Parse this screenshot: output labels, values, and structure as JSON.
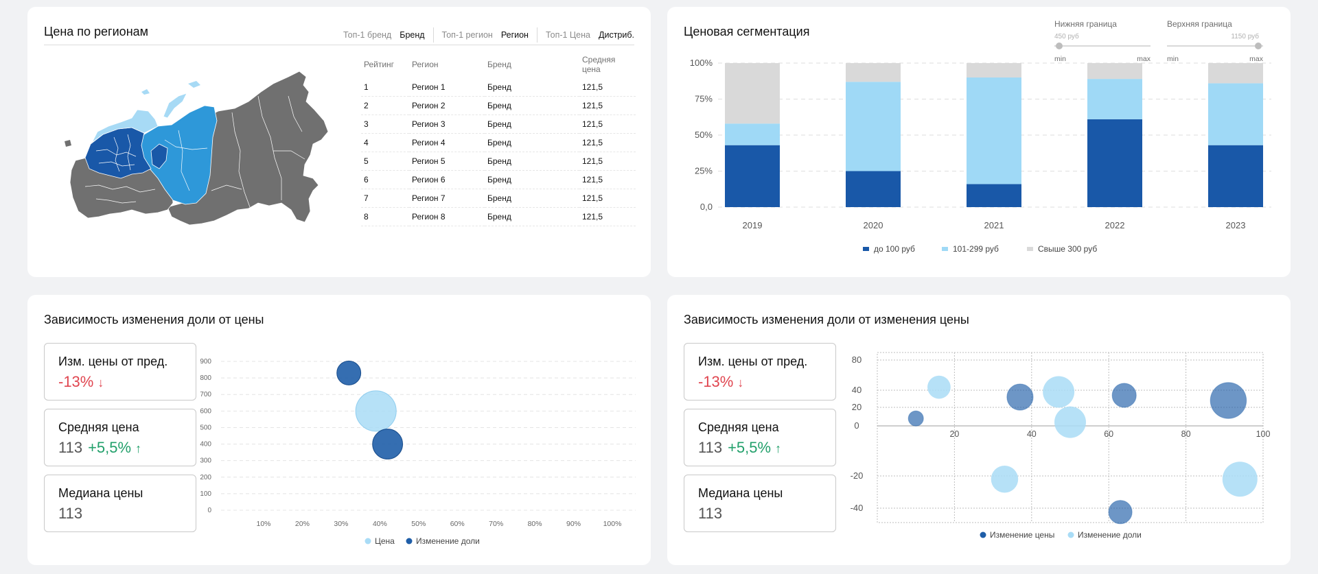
{
  "cards": {
    "map": {
      "title": "Цена по регионам",
      "filters": [
        {
          "label": "Топ-1 бренд",
          "value": "Бренд"
        },
        {
          "label": "Топ-1 регион",
          "value": "Регион"
        },
        {
          "label": "Топ-1 Цена",
          "value": "Дистриб."
        }
      ],
      "table": {
        "headers": [
          "Рейтинг",
          "Регион",
          "Бренд",
          "Средняя цена"
        ],
        "rows": [
          [
            "1",
            "Регион 1",
            "Бренд",
            "121,5"
          ],
          [
            "2",
            "Регион 2",
            "Бренд",
            "121,5"
          ],
          [
            "3",
            "Регион 3",
            "Бренд",
            "121,5"
          ],
          [
            "4",
            "Регион 4",
            "Бренд",
            "121,5"
          ],
          [
            "5",
            "Регион 5",
            "Бренд",
            "121,5"
          ],
          [
            "6",
            "Регион 6",
            "Бренд",
            "121,5"
          ],
          [
            "7",
            "Регион 7",
            "Бренд",
            "121,5"
          ],
          [
            "8",
            "Регион 8",
            "Бренд",
            "121,5"
          ]
        ]
      },
      "map_colors": {
        "high": "#1958a8",
        "mid": "#2e98d9",
        "low": "#a7daf5",
        "none": "#707070"
      }
    },
    "seg": {
      "title": "Ценовая сегментация",
      "slider_lower": {
        "title": "Нижняя граница",
        "current": "450 руб",
        "min": "min",
        "max": "max",
        "position": 0.05
      },
      "slider_upper": {
        "title": "Верхняя граница",
        "current": "1150 руб",
        "min": "min",
        "max": "max",
        "position": 0.95
      }
    },
    "bub1": {
      "title": "Зависимость изменения доли от цены",
      "kpis": [
        {
          "label": "Изм. цены от пред.",
          "value": "-13%",
          "arrow": "↓",
          "tone": "neg"
        },
        {
          "label": "Средняя цена",
          "value": "113",
          "delta": "+5,5%",
          "arrow": "↑",
          "tone": "pos"
        },
        {
          "label": "Медиана цены",
          "value": "113"
        }
      ]
    },
    "bub2": {
      "title": "Зависимость изменения доли от изменения цены",
      "kpis": [
        {
          "label": "Изм. цены от пред.",
          "value": "-13%",
          "arrow": "↓",
          "tone": "neg"
        },
        {
          "label": "Средняя цена",
          "value": "113",
          "delta": "+5,5%",
          "arrow": "↑",
          "tone": "pos"
        },
        {
          "label": "Медиана цены",
          "value": "113"
        }
      ]
    }
  },
  "chart_data": [
    {
      "type": "bar",
      "stacked": true,
      "categories": [
        "2019",
        "2020",
        "2021",
        "2022",
        "2023"
      ],
      "series": [
        {
          "name": "до 100 руб",
          "color": "#1958a8",
          "values": [
            43,
            25,
            16,
            61,
            43
          ]
        },
        {
          "name": "101-299 руб",
          "color": "#9fd9f6",
          "values": [
            15,
            62,
            74,
            28,
            43
          ]
        },
        {
          "name": "Свыше 300 руб",
          "color": "#d9d9d9",
          "values": [
            42,
            13,
            10,
            11,
            14
          ]
        }
      ],
      "ylim": [
        0,
        100
      ],
      "yticks": [
        "0,0",
        "25%",
        "50%",
        "75%",
        "100%"
      ],
      "grid": true,
      "legend": "bottom"
    },
    {
      "type": "scatter",
      "bubble": true,
      "xticks": [
        "10%",
        "20%",
        "30%",
        "40%",
        "50%",
        "60%",
        "70%",
        "80%",
        "90%",
        "100%"
      ],
      "yticks": [
        "0",
        "100",
        "200",
        "300",
        "400",
        "500",
        "600",
        "700",
        "800",
        "900"
      ],
      "xlim": [
        0,
        100
      ],
      "ylim": [
        0,
        900
      ],
      "series": [
        {
          "name": "Цена",
          "color": "#a9dcf6",
          "points": [
            {
              "x": 39,
              "y": 600,
              "size": 100
            }
          ]
        },
        {
          "name": "Изменение доли",
          "color": "#1f5ea8",
          "points": [
            {
              "x": 32,
              "y": 830,
              "size": 35
            },
            {
              "x": 42,
              "y": 400,
              "size": 55
            }
          ]
        }
      ],
      "grid": true,
      "legend": "bottom"
    },
    {
      "type": "scatter",
      "bubble": true,
      "xticks": [
        "20",
        "40",
        "60",
        "80",
        "100"
      ],
      "yticks": [
        "80",
        "40",
        "20",
        "0",
        "-20",
        "-40"
      ],
      "xlim": [
        0,
        100
      ],
      "ylim": [
        -50,
        85
      ],
      "series": [
        {
          "name": "Изменение цены",
          "color": "#1f5ea8",
          "points": [
            {
              "x": 10,
              "y": 8,
              "size": 15
            },
            {
              "x": 37,
              "y": 32,
              "size": 45
            },
            {
              "x": 64,
              "y": 34,
              "size": 38
            },
            {
              "x": 91,
              "y": 28,
              "size": 85
            },
            {
              "x": 63,
              "y": -43,
              "size": 36
            }
          ]
        },
        {
          "name": "Изменение доли",
          "color": "#a9dcf6",
          "points": [
            {
              "x": 16,
              "y": 44,
              "size": 35
            },
            {
              "x": 47,
              "y": 38,
              "size": 65
            },
            {
              "x": 50,
              "y": 4,
              "size": 65
            },
            {
              "x": 33,
              "y": -22,
              "size": 48
            },
            {
              "x": 94,
              "y": -22,
              "size": 80
            }
          ]
        }
      ],
      "grid": true,
      "legend": "bottom"
    }
  ]
}
